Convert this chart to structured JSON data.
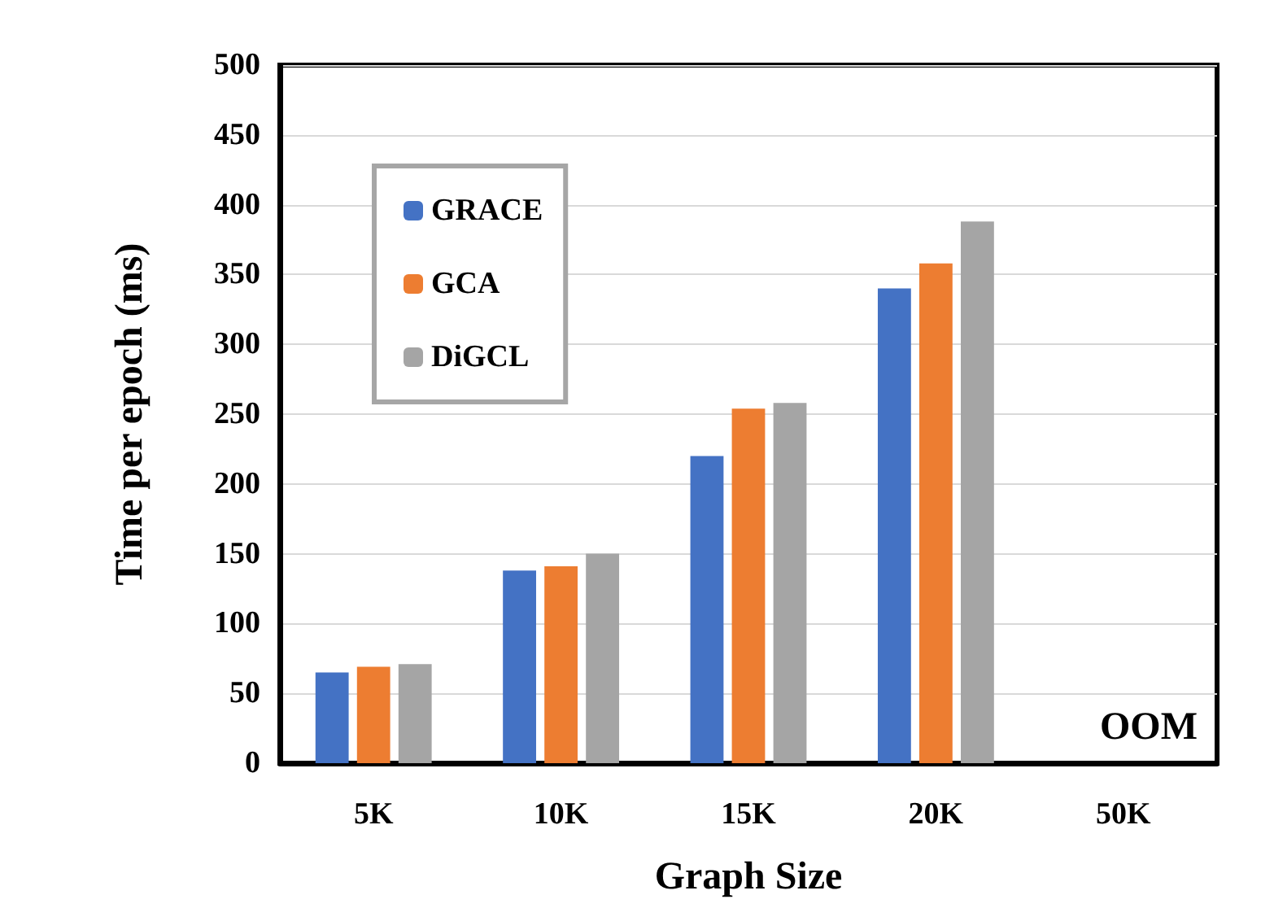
{
  "chart_data": {
    "type": "bar",
    "xlabel": "Graph Size",
    "ylabel": "Time per epoch (ms)",
    "categories": [
      "5K",
      "10K",
      "15K",
      "20K",
      "50K"
    ],
    "series": [
      {
        "name": "GRACE",
        "color": "#4472c4",
        "values": [
          65,
          138,
          220,
          340,
          null
        ]
      },
      {
        "name": "GCA",
        "color": "#ed7d31",
        "values": [
          69,
          141,
          254,
          358,
          null
        ]
      },
      {
        "name": "DiGCL",
        "color": "#a5a5a5",
        "values": [
          71,
          150,
          258,
          388,
          null
        ]
      }
    ],
    "ylim": [
      0,
      500
    ],
    "yticks": [
      0,
      50,
      100,
      150,
      200,
      250,
      300,
      350,
      400,
      450,
      500
    ],
    "grid": "y",
    "legend": "top left",
    "annotations": [
      "OOM"
    ]
  }
}
